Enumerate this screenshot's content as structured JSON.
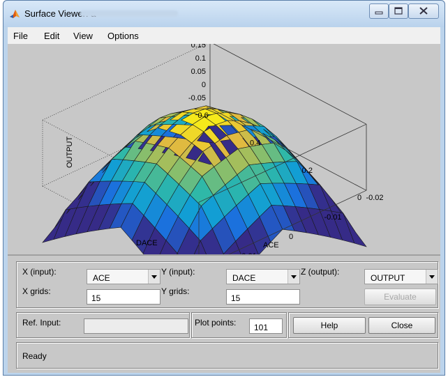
{
  "window": {
    "title": "Surface Viewer: a"
  },
  "menu": [
    "File",
    "Edit",
    "View",
    "Options"
  ],
  "plot": {
    "zlabel": "OUTPUT",
    "xlabel": "ACE",
    "ylabel": "DACE",
    "z_ticks": [
      "0.15",
      "0.1",
      "0.05",
      "0",
      "-0.05"
    ],
    "x_ticks": [
      "-0.02",
      "-0.01",
      "0",
      "0.01",
      "0.02"
    ],
    "y_ticks": [
      "0",
      "0.2",
      "0.4",
      "0.6"
    ],
    "grid_points": 15,
    "colormap": "parula-like (blue to yellow)"
  },
  "controls": {
    "x_input_label": "X (input):",
    "x_input_value": "ACE",
    "y_input_label": "Y (input):",
    "y_input_value": "DACE",
    "z_output_label": "Z (output):",
    "z_output_value": "OUTPUT",
    "x_grids_label": "X grids:",
    "x_grids_value": "15",
    "y_grids_label": "Y grids:",
    "y_grids_value": "15",
    "evaluate_label": "Evaluate",
    "ref_input_label": "Ref. Input:",
    "ref_input_value": "",
    "plot_points_label": "Plot points:",
    "plot_points_value": "101",
    "help_label": "Help",
    "close_label": "Close"
  },
  "status": "Ready"
}
